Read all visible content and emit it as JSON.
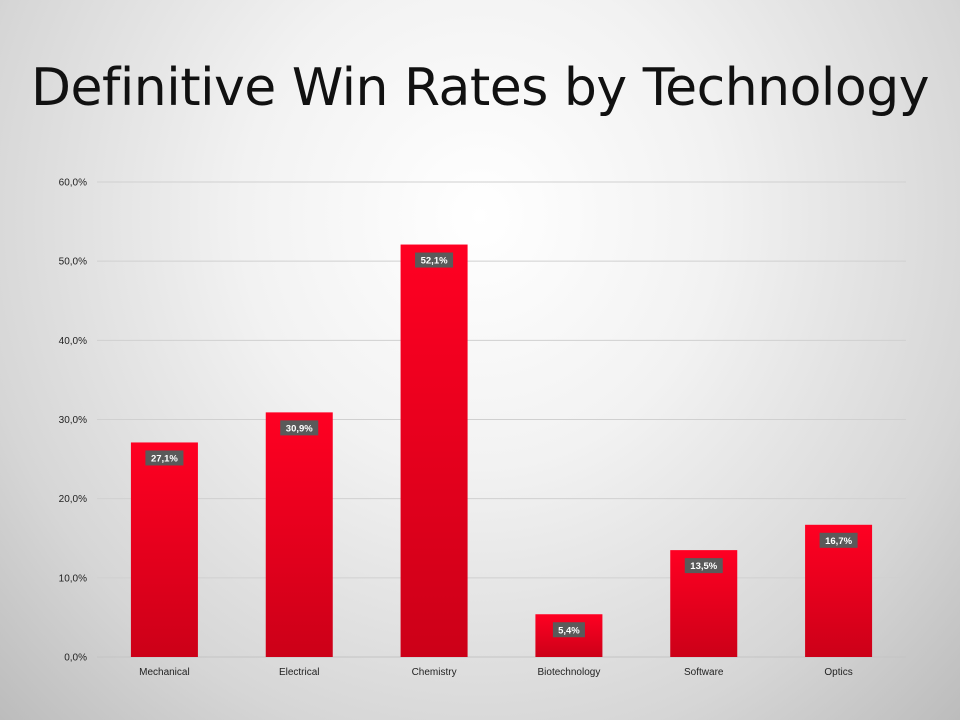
{
  "chart_data": {
    "type": "bar",
    "title": "Definitive Win Rates by Technology",
    "categories": [
      "Mechanical",
      "Electrical",
      "Chemistry",
      "Biotechnology",
      "Software",
      "Optics"
    ],
    "values": [
      27.1,
      30.9,
      52.1,
      5.4,
      13.5,
      16.7
    ],
    "data_labels": [
      "27,1%",
      "30,9%",
      "52,1%",
      "5,4%",
      "13,5%",
      "16,7%"
    ],
    "yticks": [
      "0,0%",
      "10,0%",
      "20,0%",
      "30,0%",
      "40,0%",
      "50,0%",
      "60,0%"
    ],
    "ylim": [
      0,
      60
    ],
    "xlabel": "",
    "ylabel": "",
    "grid": true,
    "legend": "none",
    "colors": {
      "bar_top": "#ff0022",
      "bar_bottom": "#cc0018",
      "label_box": "#5a5a5a",
      "grid": "#d0d0d0"
    }
  }
}
